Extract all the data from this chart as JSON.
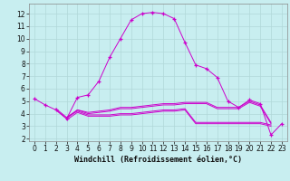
{
  "xlabel": "Windchill (Refroidissement éolien,°C)",
  "background_color": "#c8eef0",
  "grid_color": "#b0d8d8",
  "line_color": "#cc00cc",
  "xlim": [
    -0.5,
    23.5
  ],
  "ylim": [
    1.8,
    12.8
  ],
  "yticks": [
    2,
    3,
    4,
    5,
    6,
    7,
    8,
    9,
    10,
    11,
    12
  ],
  "xticks": [
    0,
    1,
    2,
    3,
    4,
    5,
    6,
    7,
    8,
    9,
    10,
    11,
    12,
    13,
    14,
    15,
    16,
    17,
    18,
    19,
    20,
    21,
    22,
    23
  ],
  "series1_x": [
    0,
    1,
    2,
    3,
    4,
    5,
    6,
    7,
    8,
    9,
    10,
    11,
    12,
    13,
    14,
    15,
    16,
    17,
    18,
    19,
    20,
    21,
    22,
    23
  ],
  "series1_y": [
    5.2,
    4.7,
    4.3,
    3.6,
    5.3,
    5.5,
    6.6,
    8.5,
    10.0,
    11.5,
    12.0,
    12.1,
    12.0,
    11.6,
    9.7,
    7.9,
    7.6,
    6.9,
    5.0,
    4.5,
    5.1,
    4.8,
    2.3,
    3.2
  ],
  "series2_x": [
    2,
    3,
    4,
    5,
    6,
    7,
    8,
    9,
    10,
    11,
    12,
    13,
    14,
    15,
    16,
    17,
    18,
    19,
    20,
    21,
    22
  ],
  "series2_y": [
    4.4,
    3.7,
    4.3,
    4.1,
    4.2,
    4.3,
    4.5,
    4.5,
    4.6,
    4.7,
    4.8,
    4.8,
    4.9,
    4.9,
    4.9,
    4.5,
    4.5,
    4.5,
    5.0,
    4.7,
    3.3
  ],
  "series3_x": [
    2,
    3,
    4,
    5,
    6,
    7,
    8,
    9,
    10,
    11,
    12,
    13,
    14,
    15,
    16,
    17,
    18,
    19,
    20,
    21,
    22
  ],
  "series3_y": [
    4.3,
    3.6,
    4.3,
    4.0,
    4.1,
    4.2,
    4.4,
    4.4,
    4.5,
    4.6,
    4.7,
    4.7,
    4.8,
    4.8,
    4.8,
    4.4,
    4.4,
    4.4,
    4.9,
    4.6,
    3.2
  ],
  "series4_x": [
    3,
    4,
    5,
    6,
    7,
    8,
    9,
    10,
    11,
    12,
    13,
    14,
    15,
    16,
    17,
    18,
    19,
    20,
    21,
    22
  ],
  "series4_y": [
    3.7,
    4.2,
    3.9,
    3.9,
    3.9,
    4.0,
    4.0,
    4.1,
    4.2,
    4.3,
    4.3,
    4.4,
    3.3,
    3.3,
    3.3,
    3.3,
    3.3,
    3.3,
    3.3,
    3.1
  ],
  "series5_x": [
    3,
    4,
    5,
    6,
    7,
    8,
    9,
    10,
    11,
    12,
    13,
    14,
    15,
    16,
    17,
    18,
    19,
    20,
    21,
    22
  ],
  "series5_y": [
    3.5,
    4.1,
    3.8,
    3.8,
    3.8,
    3.9,
    3.9,
    4.0,
    4.1,
    4.2,
    4.2,
    4.3,
    3.2,
    3.2,
    3.2,
    3.2,
    3.2,
    3.2,
    3.2,
    3.0
  ],
  "tick_fontsize": 5.5,
  "xlabel_fontsize": 6.0
}
